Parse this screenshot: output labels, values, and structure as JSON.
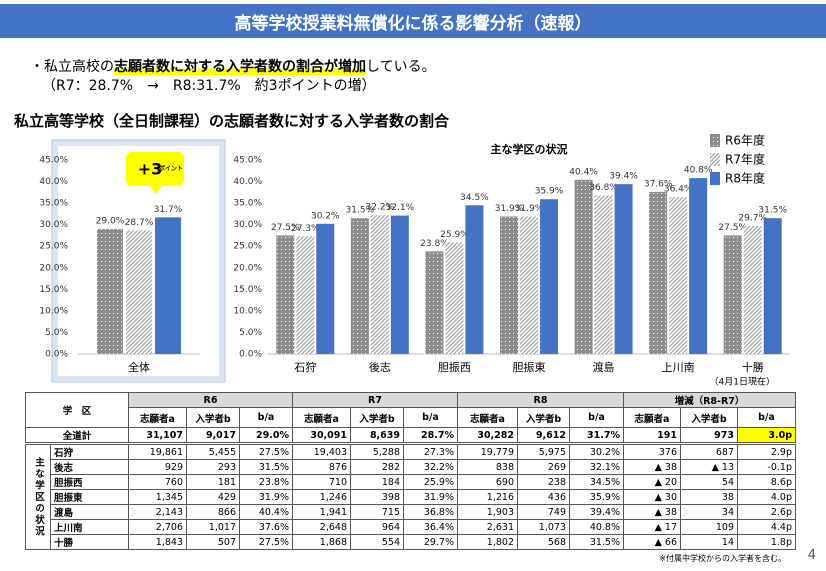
{
  "header": {
    "title": "高等学校授業料無償化に係る影響分析（速報）"
  },
  "summary": {
    "line1": [
      "・私立高校の",
      "志願者数に対する入学者数の割合が増加",
      "している。"
    ],
    "line2": "（R7：28.7%　→　R8:31.7%　約3ポイントの増）"
  },
  "section_title": "私立高等学校（全日制課程）の志願者数に対する入学者数の割合",
  "chart_data": [
    {
      "type": "bar",
      "categories": [
        "全体"
      ],
      "series": [
        {
          "name": "R6年度",
          "color": "#8c8c8c",
          "pattern": "dots",
          "values": [
            29.0
          ],
          "value_labels": [
            "29.0%"
          ]
        },
        {
          "name": "R7年度",
          "color": "#a6a6a6",
          "pattern": "hatch",
          "values": [
            28.7
          ],
          "value_labels": [
            "28.7%"
          ]
        },
        {
          "name": "R8年度",
          "color": "#4472c4",
          "pattern": "solid",
          "values": [
            31.7
          ],
          "value_labels": [
            "31.7%"
          ]
        }
      ],
      "ylim": [
        0,
        45
      ],
      "yticks": [
        {
          "value": 0,
          "label": "0.0%"
        },
        {
          "value": 5,
          "label": "5.0%"
        },
        {
          "value": 10,
          "label": "10.0%"
        },
        {
          "value": 15,
          "label": "15.0%"
        },
        {
          "value": 20,
          "label": "20.0%"
        },
        {
          "value": 25,
          "label": "25.0%"
        },
        {
          "value": 30,
          "label": "30.0%"
        },
        {
          "value": 35,
          "label": "35.0%"
        },
        {
          "value": 40,
          "label": "40.0%"
        },
        {
          "value": 45,
          "label": "45.0%"
        }
      ],
      "grid": false,
      "annotation": {
        "big": "+3",
        "small": "ポイント"
      }
    },
    {
      "type": "bar",
      "title": "主な学区の状況",
      "categories": [
        "石狩",
        "後志",
        "胆振西",
        "胆振東",
        "渡島",
        "上川南",
        "十勝"
      ],
      "series": [
        {
          "name": "R6年度",
          "color": "#8c8c8c",
          "pattern": "dots",
          "values": [
            27.5,
            31.5,
            23.8,
            31.9,
            40.4,
            37.6,
            27.5
          ],
          "value_labels": [
            "27.5%",
            "31.5%",
            "23.8%",
            "31.9%",
            "40.4%",
            "37.6%",
            "27.5%"
          ]
        },
        {
          "name": "R7年度",
          "color": "#a6a6a6",
          "pattern": "hatch",
          "values": [
            27.3,
            32.2,
            25.9,
            31.9,
            36.8,
            36.4,
            29.7
          ],
          "value_labels": [
            "27.3%",
            "32.2%",
            "25.9%",
            "31.9%",
            "36.8%",
            "36.4%",
            "29.7%"
          ]
        },
        {
          "name": "R8年度",
          "color": "#4472c4",
          "pattern": "solid",
          "values": [
            30.2,
            32.1,
            34.5,
            35.9,
            39.4,
            40.8,
            31.5
          ],
          "value_labels": [
            "30.2%",
            "32.1%",
            "34.5%",
            "35.9%",
            "39.4%",
            "40.8%",
            "31.5%"
          ]
        }
      ],
      "ylim": [
        0,
        45
      ],
      "yticks": [
        {
          "value": 0,
          "label": "0.0%"
        },
        {
          "value": 5,
          "label": "5.0%"
        },
        {
          "value": 10,
          "label": "10.0%"
        },
        {
          "value": 15,
          "label": "15.0%"
        },
        {
          "value": 20,
          "label": "20.0%"
        },
        {
          "value": 25,
          "label": "25.0%"
        },
        {
          "value": 30,
          "label": "30.0%"
        },
        {
          "value": 35,
          "label": "35.0%"
        },
        {
          "value": 40,
          "label": "40.0%"
        },
        {
          "value": 45,
          "label": "45.0%"
        }
      ],
      "grid": false,
      "legend": "top-right",
      "note": "（4月1日現在）"
    }
  ],
  "table": {
    "corner": "学　区",
    "groups": [
      "R6",
      "R7",
      "R8",
      "増減（R8-R7）"
    ],
    "subheaders": [
      "志願者a",
      "入学者b",
      "b/a"
    ],
    "total": [
      "全道計",
      "31,107",
      "9,017",
      "29.0%",
      "30,091",
      "8,639",
      "28.7%",
      "30,282",
      "9,612",
      "31.7%",
      "191",
      "973",
      "3.0p"
    ],
    "group_label": "主な学区の状況",
    "rows": [
      [
        "石狩",
        "19,861",
        "5,455",
        "27.5%",
        "19,403",
        "5,288",
        "27.3%",
        "19,779",
        "5,975",
        "30.2%",
        "376",
        "687",
        "2.9p"
      ],
      [
        "後志",
        "929",
        "293",
        "31.5%",
        "876",
        "282",
        "32.2%",
        "838",
        "269",
        "32.1%",
        "▲ 38",
        "▲ 13",
        "-0.1p"
      ],
      [
        "胆振西",
        "760",
        "181",
        "23.8%",
        "710",
        "184",
        "25.9%",
        "690",
        "238",
        "34.5%",
        "▲ 20",
        "54",
        "8.6p"
      ],
      [
        "胆振東",
        "1,345",
        "429",
        "31.9%",
        "1,246",
        "398",
        "31.9%",
        "1,216",
        "436",
        "35.9%",
        "▲ 30",
        "38",
        "4.0p"
      ],
      [
        "渡島",
        "2,143",
        "866",
        "40.4%",
        "1,941",
        "715",
        "36.8%",
        "1,903",
        "749",
        "39.4%",
        "▲ 38",
        "34",
        "2.6p"
      ],
      [
        "上川南",
        "2,706",
        "1,017",
        "37.6%",
        "2,648",
        "964",
        "36.4%",
        "2,631",
        "1,073",
        "40.8%",
        "▲ 17",
        "109",
        "4.4p"
      ],
      [
        "十勝",
        "1,843",
        "507",
        "27.5%",
        "1,868",
        "554",
        "29.7%",
        "1,802",
        "568",
        "31.5%",
        "▲ 66",
        "14",
        "1.8p"
      ]
    ],
    "footnote": "※付属中学校からの入学者を含む。"
  },
  "page_number": "4"
}
